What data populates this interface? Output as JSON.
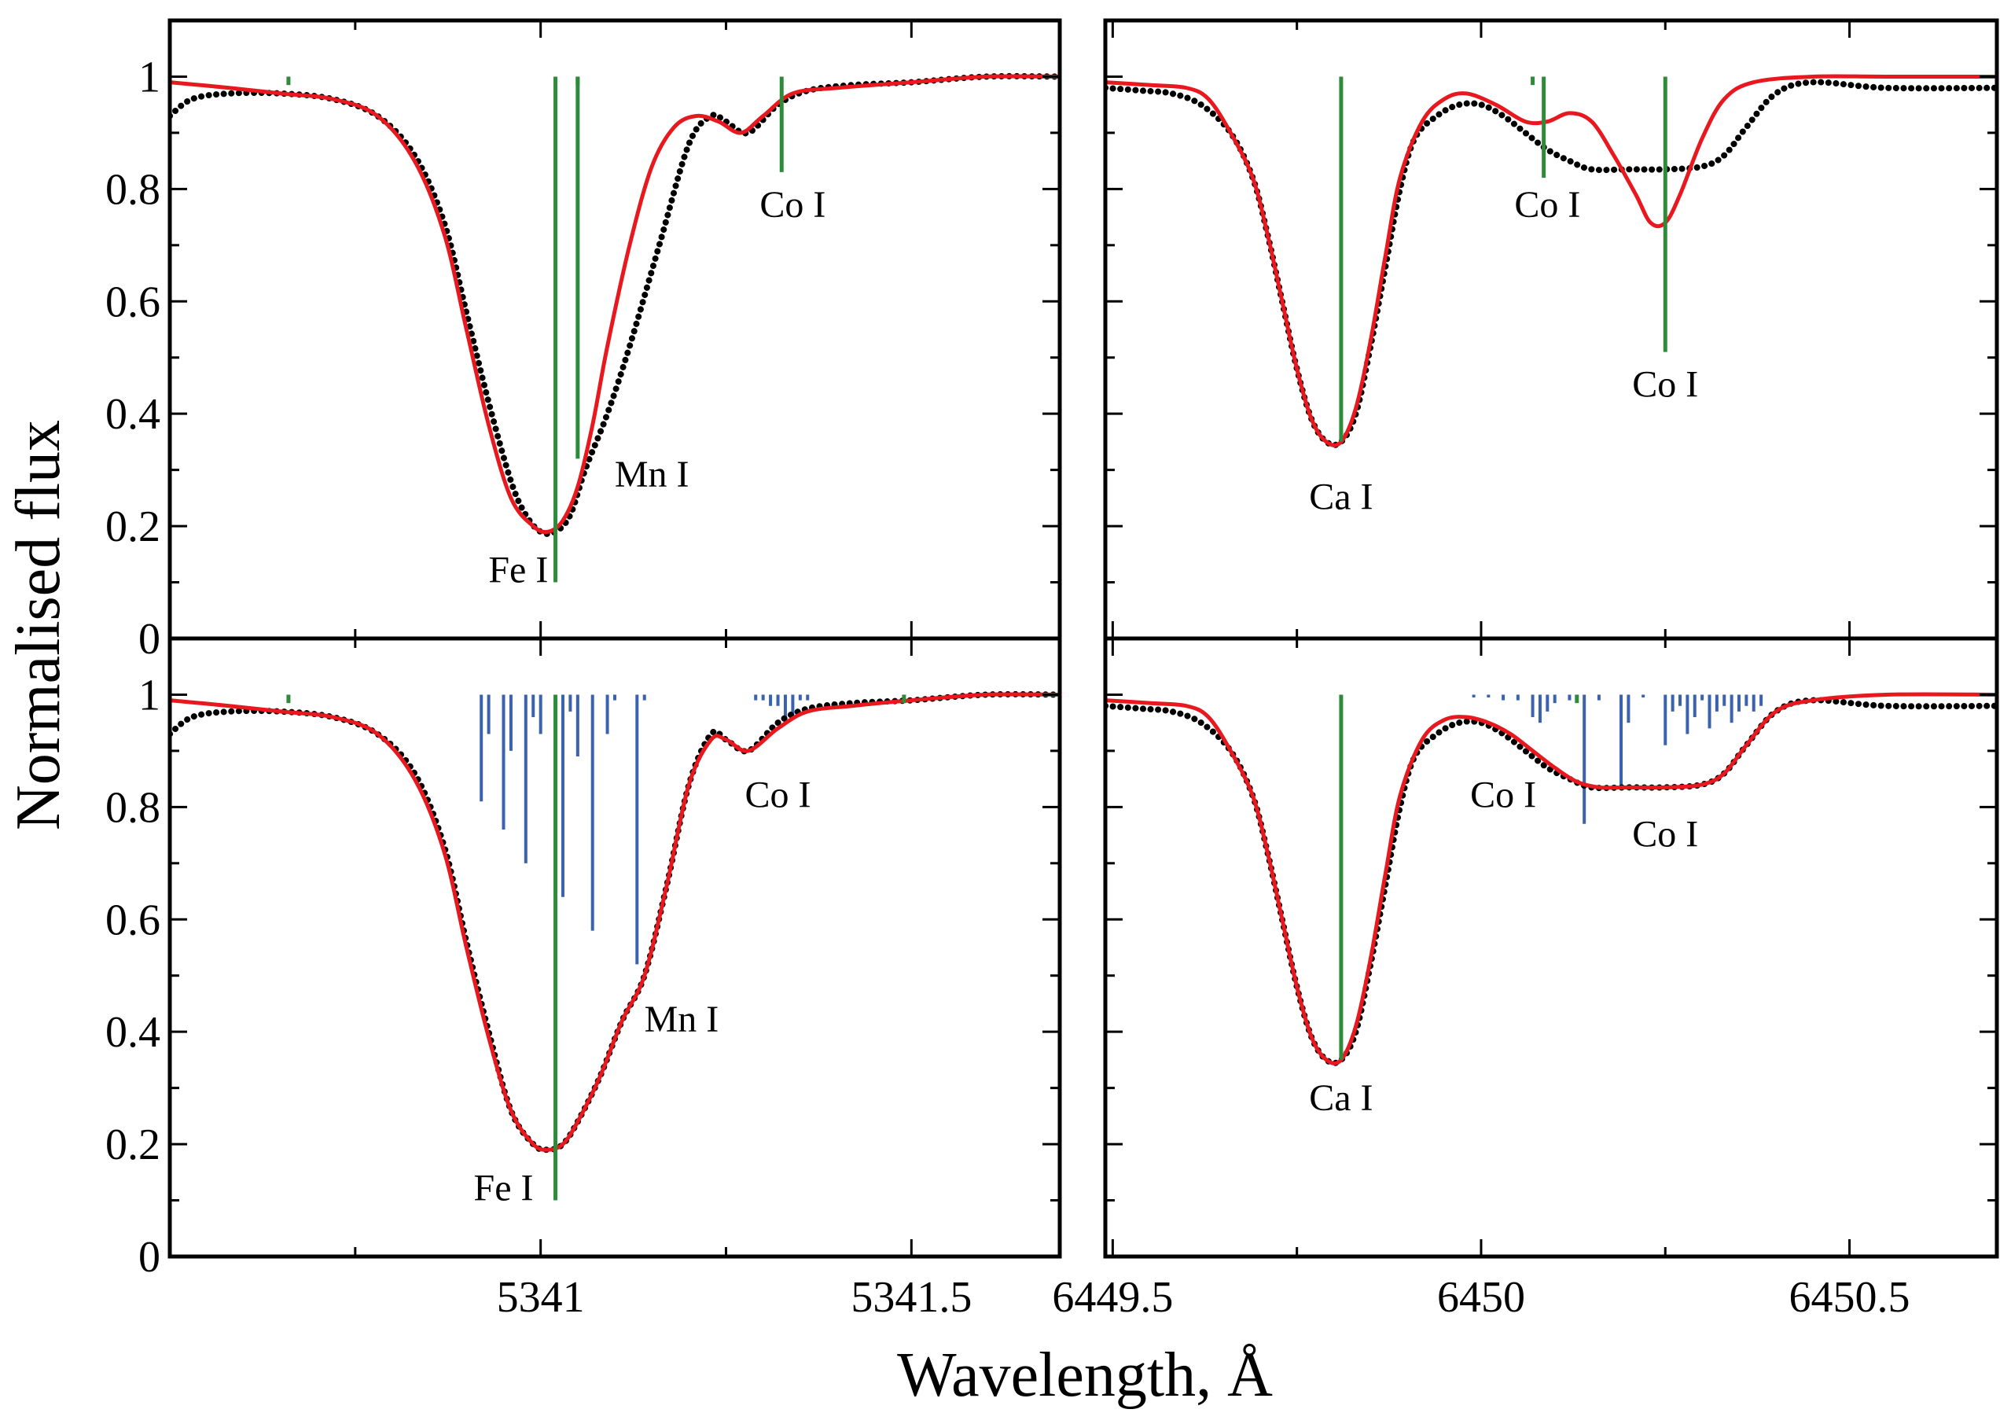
{
  "figure": {
    "ylabel": "Normalised flux",
    "xlabel": "Wavelength, Å",
    "colors": {
      "observed": "#000000",
      "model": "#e8181f",
      "line_marker": "#2e8b3a",
      "hfs_component": "#3a62ad",
      "axes": "#000000"
    }
  },
  "chart_data": [
    {
      "panel": "top-left",
      "type": "line",
      "xlim": [
        5340.5,
        5341.7
      ],
      "ylim": [
        0,
        1.1
      ],
      "xticks": [],
      "yticks": [
        0,
        0.2,
        0.4,
        0.6,
        0.8,
        1
      ],
      "ytick_labels": [
        "0",
        "0.2",
        "0.4",
        "0.6",
        "0.8",
        "1"
      ],
      "series": [
        {
          "style": "dots",
          "color": "#000000",
          "x": [
            5340.5,
            5340.53,
            5340.58,
            5340.65,
            5340.72,
            5340.78,
            5340.83,
            5340.87,
            5340.9,
            5340.93,
            5340.96,
            5340.98,
            5341.0,
            5341.02,
            5341.04,
            5341.06,
            5341.09,
            5341.12,
            5341.16,
            5341.2,
            5341.23,
            5341.25,
            5341.28,
            5341.32,
            5341.36,
            5341.42,
            5341.5,
            5341.6,
            5341.7
          ],
          "y": [
            0.93,
            0.96,
            0.97,
            0.97,
            0.96,
            0.93,
            0.86,
            0.74,
            0.58,
            0.42,
            0.28,
            0.22,
            0.19,
            0.19,
            0.22,
            0.3,
            0.4,
            0.52,
            0.7,
            0.88,
            0.93,
            0.92,
            0.9,
            0.95,
            0.975,
            0.985,
            0.99,
            1.0,
            1.0
          ]
        },
        {
          "style": "line",
          "color": "#e8181f",
          "x": [
            5340.5,
            5340.58,
            5340.65,
            5340.72,
            5340.78,
            5340.83,
            5340.87,
            5340.9,
            5340.93,
            5340.96,
            5340.99,
            5341.01,
            5341.03,
            5341.05,
            5341.07,
            5341.09,
            5341.12,
            5341.15,
            5341.18,
            5341.21,
            5341.24,
            5341.27,
            5341.3,
            5341.34,
            5341.4,
            5341.5,
            5341.6,
            5341.7
          ],
          "y": [
            0.99,
            0.98,
            0.97,
            0.96,
            0.93,
            0.85,
            0.72,
            0.55,
            0.38,
            0.25,
            0.2,
            0.19,
            0.21,
            0.27,
            0.38,
            0.52,
            0.7,
            0.84,
            0.91,
            0.93,
            0.92,
            0.9,
            0.93,
            0.97,
            0.98,
            0.99,
            1.0,
            1.0
          ]
        }
      ],
      "markers": [
        {
          "x": 5341.02,
          "y_bottom": 0.1,
          "color": "#2e8b3a"
        },
        {
          "x": 5341.05,
          "y_bottom": 0.32,
          "color": "#2e8b3a"
        },
        {
          "x": 5341.325,
          "y_bottom": 0.83,
          "color": "#2e8b3a"
        }
      ],
      "stubs": [
        5340.66,
        5341.05
      ],
      "labels": [
        {
          "text": "Fe I",
          "x": 5340.97,
          "y": 0.1
        },
        {
          "text": "Mn I",
          "x": 5341.15,
          "y": 0.27
        },
        {
          "text": "Co I",
          "x": 5341.34,
          "y": 0.75
        }
      ]
    },
    {
      "panel": "top-right",
      "type": "line",
      "xlim": [
        6449.49,
        6450.7
      ],
      "ylim": [
        0,
        1.1
      ],
      "xticks": [],
      "yticks": [
        0,
        0.2,
        0.4,
        0.6,
        0.8,
        1
      ],
      "ytick_labels": [],
      "series": [
        {
          "style": "dots",
          "color": "#000000",
          "x": [
            6449.49,
            6449.54,
            6449.58,
            6449.62,
            6449.66,
            6449.69,
            6449.71,
            6449.73,
            6449.75,
            6449.77,
            6449.79,
            6449.81,
            6449.83,
            6449.85,
            6449.87,
            6449.89,
            6449.91,
            6449.94,
            6449.97,
            6450.0,
            6450.03,
            6450.06,
            6450.09,
            6450.12,
            6450.15,
            6450.2,
            6450.25,
            6450.3,
            6450.33,
            6450.36,
            6450.4,
            6450.45,
            6450.55,
            6450.7
          ],
          "y": [
            0.98,
            0.975,
            0.97,
            0.95,
            0.9,
            0.82,
            0.72,
            0.6,
            0.48,
            0.39,
            0.35,
            0.35,
            0.4,
            0.52,
            0.66,
            0.8,
            0.89,
            0.93,
            0.95,
            0.95,
            0.93,
            0.9,
            0.87,
            0.85,
            0.835,
            0.835,
            0.835,
            0.84,
            0.86,
            0.91,
            0.97,
            0.99,
            0.98,
            0.98
          ]
        },
        {
          "style": "line",
          "color": "#e8181f",
          "x": [
            6449.49,
            6449.55,
            6449.6,
            6449.63,
            6449.66,
            6449.69,
            6449.71,
            6449.73,
            6449.75,
            6449.77,
            6449.79,
            6449.81,
            6449.83,
            6449.85,
            6449.87,
            6449.89,
            6449.92,
            6449.95,
            6449.98,
            6450.02,
            6450.06,
            6450.09,
            6450.12,
            6450.15,
            6450.18,
            6450.21,
            6450.23,
            6450.25,
            6450.27,
            6450.3,
            6450.33,
            6450.37,
            6450.45,
            6450.55,
            6450.7
          ],
          "y": [
            0.99,
            0.985,
            0.98,
            0.96,
            0.9,
            0.82,
            0.72,
            0.6,
            0.48,
            0.39,
            0.35,
            0.35,
            0.41,
            0.53,
            0.68,
            0.82,
            0.92,
            0.96,
            0.97,
            0.95,
            0.92,
            0.92,
            0.935,
            0.92,
            0.86,
            0.79,
            0.74,
            0.74,
            0.79,
            0.89,
            0.96,
            0.99,
            1.0,
            1.0,
            1.0
          ]
        }
      ],
      "markers": [
        {
          "x": 6449.81,
          "y_bottom": 0.35,
          "color": "#2e8b3a"
        },
        {
          "x": 6450.085,
          "y_bottom": 0.82,
          "color": "#2e8b3a"
        },
        {
          "x": 6450.25,
          "y_bottom": 0.51,
          "color": "#2e8b3a"
        }
      ],
      "stubs": [
        6450.07
      ],
      "labels": [
        {
          "text": "Ca I",
          "x": 6449.81,
          "y": 0.23
        },
        {
          "text": "Co I",
          "x": 6450.09,
          "y": 0.75
        },
        {
          "text": "Co I",
          "x": 6450.25,
          "y": 0.43
        }
      ]
    },
    {
      "panel": "bottom-left",
      "type": "line",
      "xlim": [
        5340.5,
        5341.7
      ],
      "ylim": [
        0,
        1.1
      ],
      "xticks": [
        5341,
        5341.5
      ],
      "xtick_labels": [
        "5341",
        "5341.5"
      ],
      "yticks": [
        0,
        0.2,
        0.4,
        0.6,
        0.8,
        1
      ],
      "ytick_labels": [
        "0",
        "0.2",
        "0.4",
        "0.6",
        "0.8",
        "1"
      ],
      "series": [
        {
          "style": "dots",
          "color": "#000000",
          "x": [
            5340.5,
            5340.53,
            5340.58,
            5340.65,
            5340.72,
            5340.78,
            5340.83,
            5340.87,
            5340.9,
            5340.93,
            5340.96,
            5340.99,
            5341.01,
            5341.03,
            5341.05,
            5341.08,
            5341.11,
            5341.14,
            5341.17,
            5341.2,
            5341.23,
            5341.25,
            5341.28,
            5341.32,
            5341.36,
            5341.42,
            5341.5,
            5341.6,
            5341.7
          ],
          "y": [
            0.93,
            0.96,
            0.97,
            0.97,
            0.96,
            0.93,
            0.86,
            0.73,
            0.56,
            0.4,
            0.26,
            0.2,
            0.19,
            0.2,
            0.24,
            0.32,
            0.42,
            0.5,
            0.66,
            0.84,
            0.93,
            0.92,
            0.9,
            0.95,
            0.975,
            0.985,
            0.99,
            1.0,
            1.0
          ]
        },
        {
          "style": "line",
          "color": "#e8181f",
          "x": [
            5340.5,
            5340.58,
            5340.65,
            5340.72,
            5340.78,
            5340.83,
            5340.87,
            5340.9,
            5340.93,
            5340.96,
            5340.99,
            5341.01,
            5341.03,
            5341.05,
            5341.08,
            5341.11,
            5341.14,
            5341.17,
            5341.2,
            5341.23,
            5341.25,
            5341.28,
            5341.32,
            5341.36,
            5341.42,
            5341.5,
            5341.6,
            5341.7
          ],
          "y": [
            0.99,
            0.98,
            0.97,
            0.96,
            0.93,
            0.85,
            0.72,
            0.55,
            0.39,
            0.26,
            0.2,
            0.19,
            0.2,
            0.24,
            0.32,
            0.42,
            0.5,
            0.66,
            0.84,
            0.92,
            0.92,
            0.9,
            0.94,
            0.97,
            0.98,
            0.99,
            1.0,
            1.0
          ]
        }
      ],
      "markers": [
        {
          "x": 5341.02,
          "y_bottom": 0.1,
          "color": "#2e8b3a"
        }
      ],
      "stubs": [
        5340.66,
        5341.49
      ],
      "hfs_components": {
        "color": "#3a62ad",
        "x": [
          5340.92,
          5340.93,
          5340.95,
          5340.96,
          5340.98,
          5340.99,
          5341.0,
          5341.02,
          5341.03,
          5341.04,
          5341.05,
          5341.07,
          5341.09,
          5341.1,
          5341.13,
          5341.14,
          5341.29,
          5341.3,
          5341.31,
          5341.32,
          5341.33,
          5341.34,
          5341.35,
          5341.36
        ],
        "y": [
          0.81,
          0.93,
          0.76,
          0.9,
          0.7,
          0.96,
          0.93,
          0.79,
          0.64,
          0.97,
          0.89,
          0.58,
          0.93,
          0.99,
          0.52,
          0.99,
          0.99,
          0.99,
          0.98,
          0.98,
          0.96,
          0.96,
          0.99,
          0.99
        ]
      },
      "labels": [
        {
          "text": "Fe I",
          "x": 5340.95,
          "y": 0.1
        },
        {
          "text": "Mn I",
          "x": 5341.19,
          "y": 0.4
        },
        {
          "text": "Co I",
          "x": 5341.32,
          "y": 0.8
        }
      ]
    },
    {
      "panel": "bottom-right",
      "type": "line",
      "xlim": [
        6449.49,
        6450.7
      ],
      "ylim": [
        0,
        1.1
      ],
      "xticks": [
        6449.5,
        6450,
        6450.5
      ],
      "xtick_labels": [
        "6449.5",
        "6450",
        "6450.5"
      ],
      "yticks": [
        0,
        0.2,
        0.4,
        0.6,
        0.8,
        1
      ],
      "ytick_labels": [],
      "series": [
        {
          "style": "dots",
          "color": "#000000",
          "x": [
            6449.49,
            6449.54,
            6449.58,
            6449.62,
            6449.66,
            6449.69,
            6449.71,
            6449.73,
            6449.75,
            6449.77,
            6449.79,
            6449.81,
            6449.83,
            6449.85,
            6449.87,
            6449.89,
            6449.91,
            6449.94,
            6449.97,
            6450.0,
            6450.03,
            6450.06,
            6450.09,
            6450.12,
            6450.15,
            6450.2,
            6450.25,
            6450.3,
            6450.33,
            6450.36,
            6450.4,
            6450.45,
            6450.55,
            6450.7
          ],
          "y": [
            0.98,
            0.975,
            0.97,
            0.95,
            0.9,
            0.82,
            0.72,
            0.6,
            0.48,
            0.39,
            0.35,
            0.35,
            0.4,
            0.52,
            0.66,
            0.8,
            0.89,
            0.93,
            0.95,
            0.95,
            0.93,
            0.9,
            0.87,
            0.85,
            0.835,
            0.835,
            0.835,
            0.84,
            0.86,
            0.91,
            0.97,
            0.99,
            0.98,
            0.98
          ]
        },
        {
          "style": "line",
          "color": "#e8181f",
          "x": [
            6449.49,
            6449.55,
            6449.6,
            6449.63,
            6449.66,
            6449.69,
            6449.71,
            6449.73,
            6449.75,
            6449.77,
            6449.79,
            6449.81,
            6449.83,
            6449.85,
            6449.87,
            6449.89,
            6449.92,
            6449.95,
            6449.98,
            6450.01,
            6450.04,
            6450.07,
            6450.1,
            6450.13,
            6450.16,
            6450.2,
            6450.25,
            6450.3,
            6450.33,
            6450.36,
            6450.4,
            6450.45,
            6450.55,
            6450.7
          ],
          "y": [
            0.99,
            0.985,
            0.98,
            0.96,
            0.9,
            0.82,
            0.72,
            0.6,
            0.48,
            0.39,
            0.35,
            0.35,
            0.41,
            0.53,
            0.68,
            0.82,
            0.92,
            0.955,
            0.96,
            0.95,
            0.93,
            0.9,
            0.87,
            0.845,
            0.835,
            0.835,
            0.835,
            0.84,
            0.86,
            0.91,
            0.97,
            0.99,
            1.0,
            1.0
          ]
        }
      ],
      "markers": [
        {
          "x": 6449.81,
          "y_bottom": 0.35,
          "color": "#2e8b3a"
        }
      ],
      "stubs": [
        6450.13
      ],
      "hfs_components": {
        "color": "#3a62ad",
        "x": [
          6449.99,
          6450.01,
          6450.03,
          6450.05,
          6450.07,
          6450.08,
          6450.09,
          6450.1,
          6450.12,
          6450.14,
          6450.16,
          6450.19,
          6450.2,
          6450.22,
          6450.25,
          6450.26,
          6450.27,
          6450.28,
          6450.29,
          6450.3,
          6450.31,
          6450.32,
          6450.33,
          6450.34,
          6450.35,
          6450.36,
          6450.37,
          6450.38
        ],
        "y": [
          0.995,
          0.995,
          0.99,
          0.99,
          0.96,
          0.95,
          0.97,
          0.985,
          0.99,
          0.77,
          0.99,
          0.83,
          0.95,
          0.995,
          0.91,
          0.97,
          0.98,
          0.93,
          0.96,
          0.99,
          0.94,
          0.97,
          0.98,
          0.95,
          0.97,
          0.98,
          0.97,
          0.98
        ]
      },
      "labels": [
        {
          "text": "Co I",
          "x": 6450.03,
          "y": 0.8
        },
        {
          "text": "Co I",
          "x": 6450.25,
          "y": 0.73
        },
        {
          "text": "Ca I",
          "x": 6449.81,
          "y": 0.26
        }
      ]
    }
  ]
}
